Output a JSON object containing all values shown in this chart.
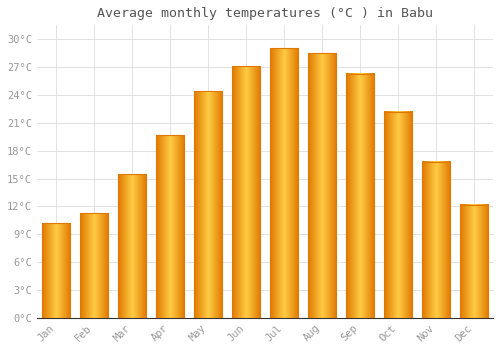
{
  "title": "Average monthly temperatures (°C ) in Babu",
  "months": [
    "Jan",
    "Feb",
    "Mar",
    "Apr",
    "May",
    "Jun",
    "Jul",
    "Aug",
    "Sep",
    "Oct",
    "Nov",
    "Dec"
  ],
  "values": [
    10.2,
    11.3,
    15.5,
    19.7,
    24.4,
    27.1,
    29.0,
    28.5,
    26.3,
    22.2,
    16.8,
    12.2
  ],
  "bar_color_center": "#FFCC44",
  "bar_color_edge": "#E07800",
  "background_color": "#FFFFFF",
  "grid_color": "#DDDDDD",
  "text_color": "#999999",
  "title_color": "#555555",
  "ylim": [
    0,
    31.5
  ],
  "yticks": [
    0,
    3,
    6,
    9,
    12,
    15,
    18,
    21,
    24,
    27,
    30
  ],
  "ytick_labels": [
    "0°C",
    "3°C",
    "6°C",
    "9°C",
    "12°C",
    "15°C",
    "18°C",
    "21°C",
    "24°C",
    "27°C",
    "30°C"
  ],
  "bar_width": 0.75,
  "figsize": [
    5.0,
    3.5
  ],
  "dpi": 100
}
